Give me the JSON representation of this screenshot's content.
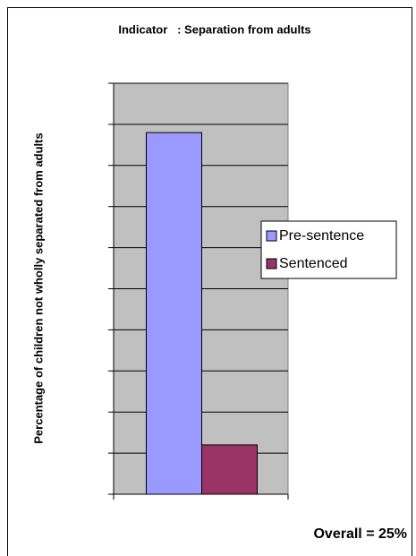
{
  "chart_data": {
    "type": "bar",
    "title": "Indicator   : Separation from adults",
    "y_label": "Percentage of children not wholly separated from adults",
    "annotation": "Overall = 25%",
    "categories": [
      null
    ],
    "series": [
      {
        "name": "Pre-sentence",
        "color": "#9999ff",
        "values": [
          88
        ]
      },
      {
        "name": "Sentenced",
        "color": "#993366",
        "values": [
          12
        ]
      }
    ],
    "ylim": [
      0,
      100
    ],
    "yticks": [
      0,
      10,
      20,
      30,
      40,
      50,
      60,
      70,
      80,
      90,
      100
    ],
    "grid": true,
    "legend": "right"
  }
}
